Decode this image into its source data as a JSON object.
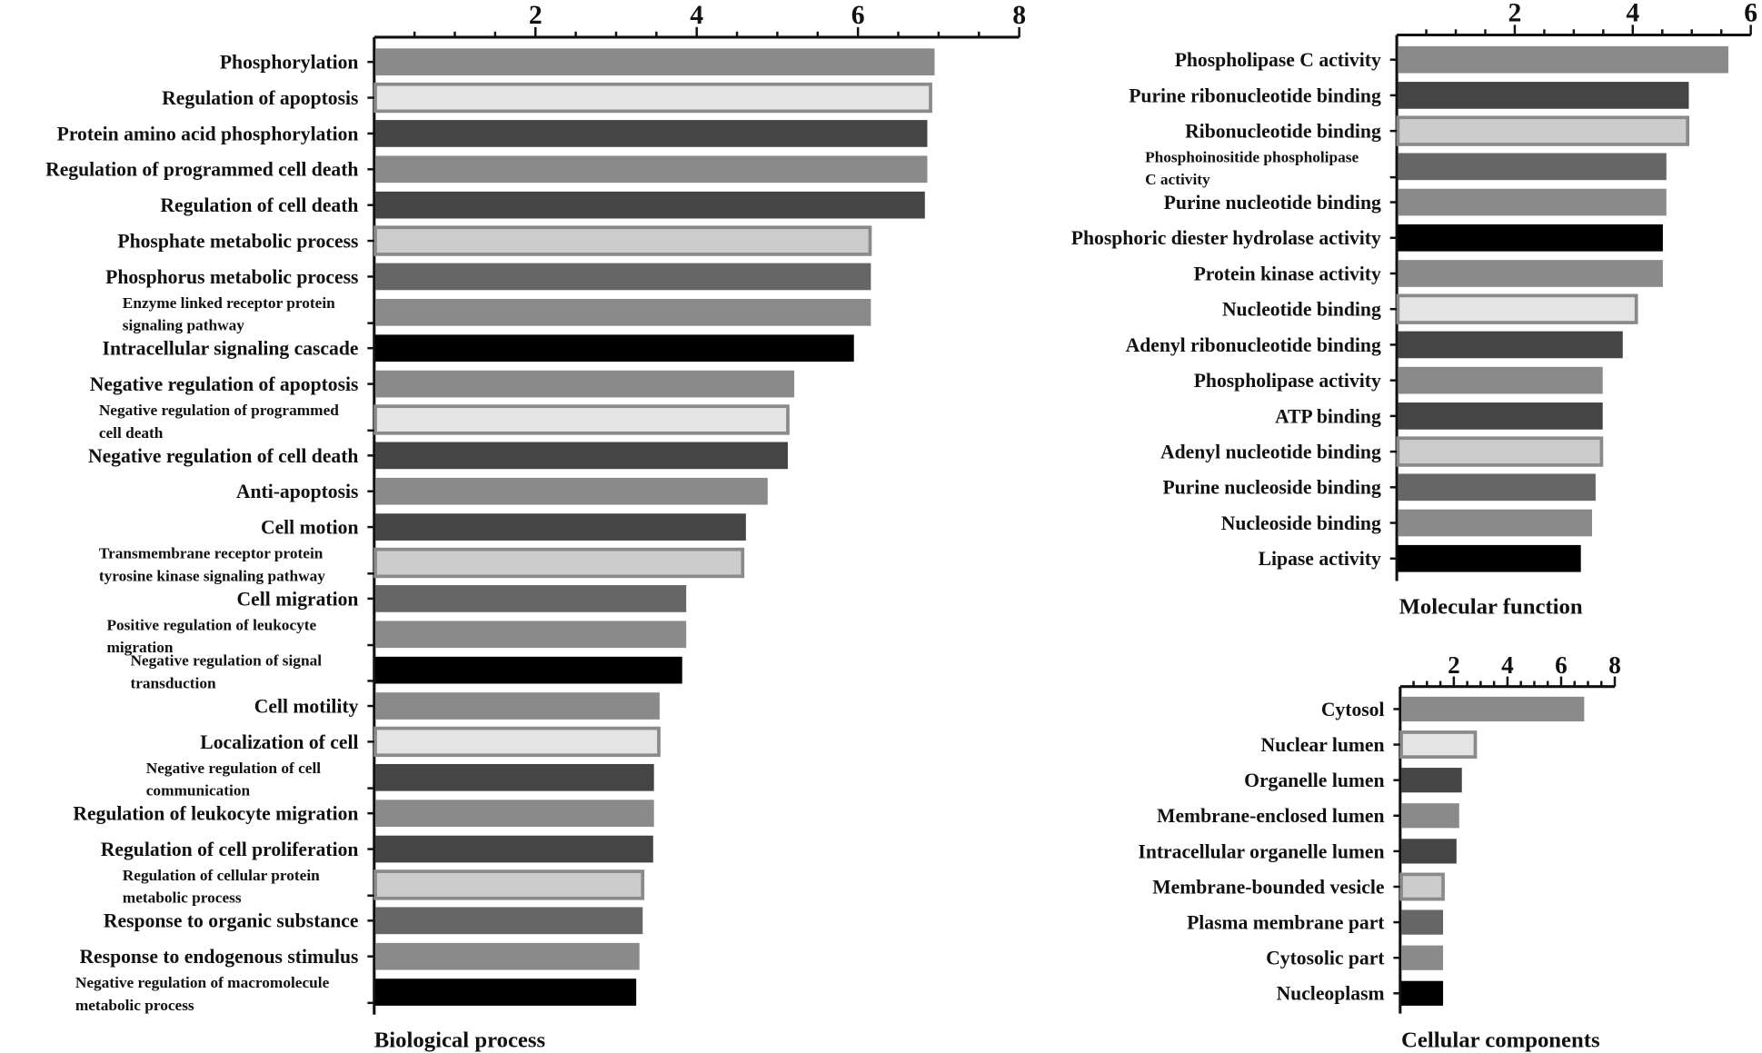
{
  "chart_data": [
    {
      "type": "bar",
      "orientation": "horizontal",
      "xlabel": "Biological process",
      "xlim": [
        0,
        8
      ],
      "ticks": [
        2,
        4,
        6,
        8
      ],
      "grid": false,
      "categories": [
        "Phosphorylation",
        "Regulation of apoptosis",
        "Protein amino acid phosphorylation",
        "Regulation of programmed cell death",
        "Regulation of cell death",
        "Phosphate metabolic process",
        "Phosphorus metabolic process",
        "Enzyme linked receptor protein\nsignaling pathway",
        "Intracellular signaling cascade",
        "Negative regulation of apoptosis",
        "Negative regulation of programmed\ncell death",
        "Negative regulation of cell death",
        "Anti-apoptosis",
        "Cell motion",
        "Transmembrane receptor protein\ntyrosine kinase signaling pathway",
        "Cell migration",
        "Positive regulation of leukocyte\nmigration",
        "Negative regulation of signal\ntransduction",
        "Cell motility",
        "Localization of cell",
        "Negative regulation of cell\ncommunication",
        "Regulation of leukocyte migration",
        "Regulation of cell proliferation",
        "Regulation of cellular protein\nmetabolic process",
        "Response to organic substance",
        "Response to endogenous stimulus",
        "Negative regulation of macromolecule\nmetabolic process"
      ],
      "values": [
        6.95,
        6.9,
        6.86,
        6.86,
        6.83,
        6.15,
        6.16,
        6.16,
        5.95,
        5.21,
        5.13,
        5.13,
        4.88,
        4.61,
        4.57,
        3.87,
        3.87,
        3.82,
        3.54,
        3.53,
        3.47,
        3.47,
        3.46,
        3.33,
        3.33,
        3.29,
        3.25
      ],
      "colors": [
        "#8a8a8a",
        "#e4e4e4",
        "#454545",
        "#8a8a8a",
        "#454545",
        "#cccccc",
        "#666666",
        "#8a8a8a",
        "#000000",
        "#8a8a8a",
        "#e4e4e4",
        "#454545",
        "#8a8a8a",
        "#454545",
        "#cccccc",
        "#666666",
        "#8a8a8a",
        "#000000",
        "#8a8a8a",
        "#e4e4e4",
        "#454545",
        "#8a8a8a",
        "#454545",
        "#cccccc",
        "#666666",
        "#8a8a8a",
        "#000000"
      ]
    },
    {
      "type": "bar",
      "orientation": "horizontal",
      "xlabel": "Molecular function",
      "xlim": [
        0,
        6
      ],
      "ticks": [
        2,
        4,
        6
      ],
      "grid": false,
      "categories": [
        "Phospholipase C activity",
        "Purine ribonucleotide binding",
        "Ribonucleotide binding",
        "Phosphoinositide phospholipase\nC activity",
        "Purine nucleotide binding",
        "Phosphoric diester hydrolase activity",
        "Protein kinase activity",
        "Nucleotide binding",
        "Adenyl ribonucleotide binding",
        "Phospholipase activity",
        "ATP binding",
        "Adenyl nucleotide binding",
        "Purine nucleoside binding",
        "Nucleoside binding",
        "Lipase activity"
      ],
      "values": [
        5.62,
        4.95,
        4.93,
        4.57,
        4.57,
        4.51,
        4.51,
        4.06,
        3.83,
        3.49,
        3.49,
        3.47,
        3.37,
        3.31,
        3.12
      ],
      "colors": [
        "#8a8a8a",
        "#454545",
        "#cccccc",
        "#666666",
        "#8a8a8a",
        "#000000",
        "#8a8a8a",
        "#e4e4e4",
        "#454545",
        "#8a8a8a",
        "#454545",
        "#cccccc",
        "#666666",
        "#8a8a8a",
        "#000000"
      ]
    },
    {
      "type": "bar",
      "orientation": "horizontal",
      "xlabel": "Cellular components",
      "xlim": [
        0,
        8
      ],
      "ticks": [
        2,
        4,
        6,
        8
      ],
      "grid": false,
      "categories": [
        "Cytosol",
        "Nuclear lumen",
        "Organelle lumen",
        "Membrane-enclosed lumen",
        "Intracellular organelle lumen",
        "Membrane-bounded vesicle",
        "Plasma membrane part",
        "Cytosolic part",
        "Nucleoplasm"
      ],
      "values": [
        6.86,
        2.8,
        2.3,
        2.2,
        2.1,
        1.6,
        1.6,
        1.6,
        1.6
      ],
      "colors": [
        "#8a8a8a",
        "#e4e4e4",
        "#454545",
        "#8a8a8a",
        "#454545",
        "#cccccc",
        "#666666",
        "#8a8a8a",
        "#000000"
      ]
    }
  ]
}
